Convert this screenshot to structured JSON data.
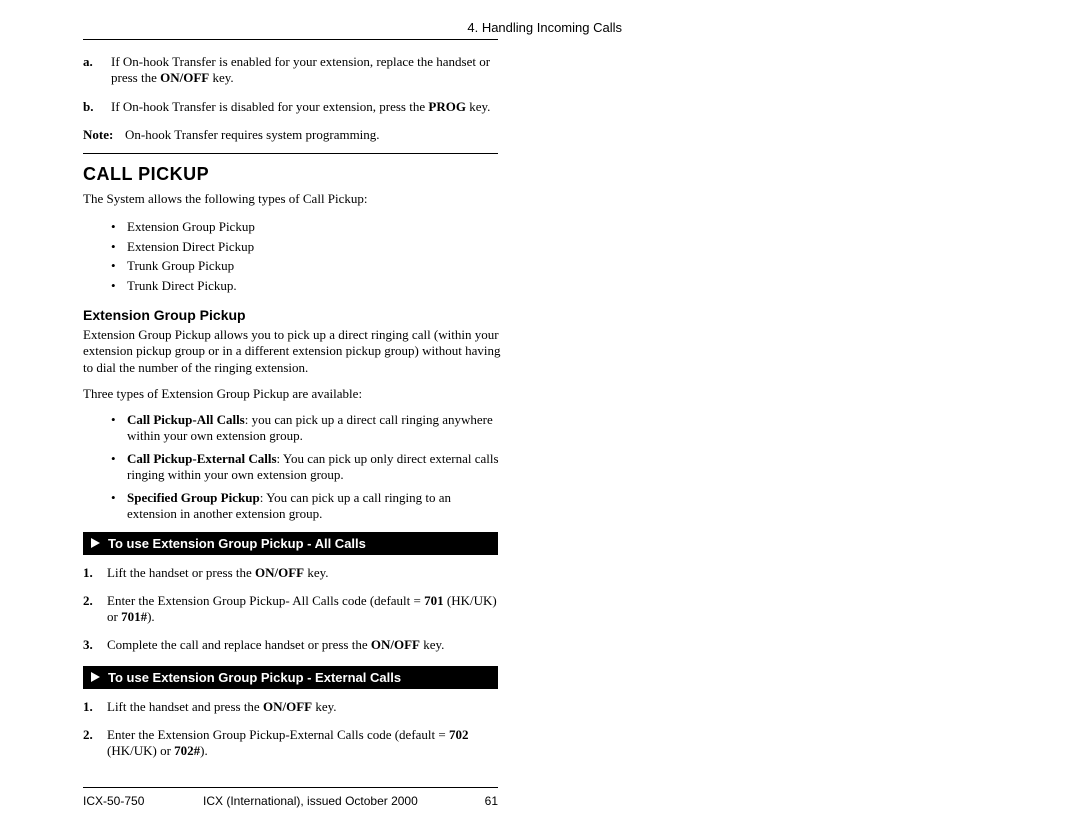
{
  "header": {
    "chapter": "4. Handling Incoming Calls"
  },
  "listA": {
    "a_marker": "a.",
    "a_text": "If On-hook Transfer is enabled for your extension, replace the handset or press the ",
    "a_bold": "ON/OFF",
    "a_tail": " key.",
    "b_marker": "b.",
    "b_text": "If On-hook Transfer is disabled for your extension, press the ",
    "b_bold": "PROG",
    "b_tail": " key."
  },
  "note": {
    "label": "Note:",
    "text": "On-hook Transfer requires system programming."
  },
  "section": {
    "title": "CALL PICKUP",
    "intro": "The System allows the following types of Call Pickup:",
    "types": [
      "Extension Group Pickup",
      "Extension Direct Pickup",
      "Trunk Group Pickup",
      "Trunk Direct Pickup."
    ]
  },
  "egp": {
    "title": "Extension Group Pickup",
    "para1": "Extension Group Pickup allows you to pick up a direct ringing call (within your extension pickup group or in a different extension pickup group) without having to dial the number of the ringing extension.",
    "para2": "Three types of Extension Group Pickup are available:",
    "options": [
      {
        "bold": "Call Pickup-All Calls",
        "text": ": you can pick up a direct call ringing anywhere within your own extension group."
      },
      {
        "bold": "Call Pickup-External Calls",
        "text": ": You can pick up only direct external calls ringing within your own extension group."
      },
      {
        "bold": "Specified Group Pickup",
        "text": ": You can pick up a call ringing to an extension in another extension group."
      }
    ]
  },
  "bar1": {
    "title": "To use Extension Group Pickup - All Calls"
  },
  "steps1": {
    "s1_n": "1.",
    "s1_a": "Lift the handset or press the ",
    "s1_b": "ON/OFF",
    "s1_c": " key.",
    "s2_n": "2.",
    "s2_a": "Enter the Extension Group Pickup- All Calls code (default = ",
    "s2_b": "701",
    "s2_c": " (HK/UK) or ",
    "s2_d": "701#",
    "s2_e": ").",
    "s3_n": "3.",
    "s3_a": "Complete the call and replace handset or press the ",
    "s3_b": "ON/OFF",
    "s3_c": " key."
  },
  "bar2": {
    "title": "To use Extension Group Pickup - External Calls"
  },
  "steps2": {
    "s1_n": "1.",
    "s1_a": "Lift the handset and press the ",
    "s1_b": "ON/OFF",
    "s1_c": " key.",
    "s2_n": "2.",
    "s2_a": "Enter the Extension Group Pickup-External Calls code (default = ",
    "s2_b": "702",
    "s2_c": " (HK/UK) or ",
    "s2_d": "702#",
    "s2_e": ")."
  },
  "footer": {
    "doc": "ICX-50-750",
    "issue": "ICX (International), issued October 2000",
    "page": "61"
  }
}
